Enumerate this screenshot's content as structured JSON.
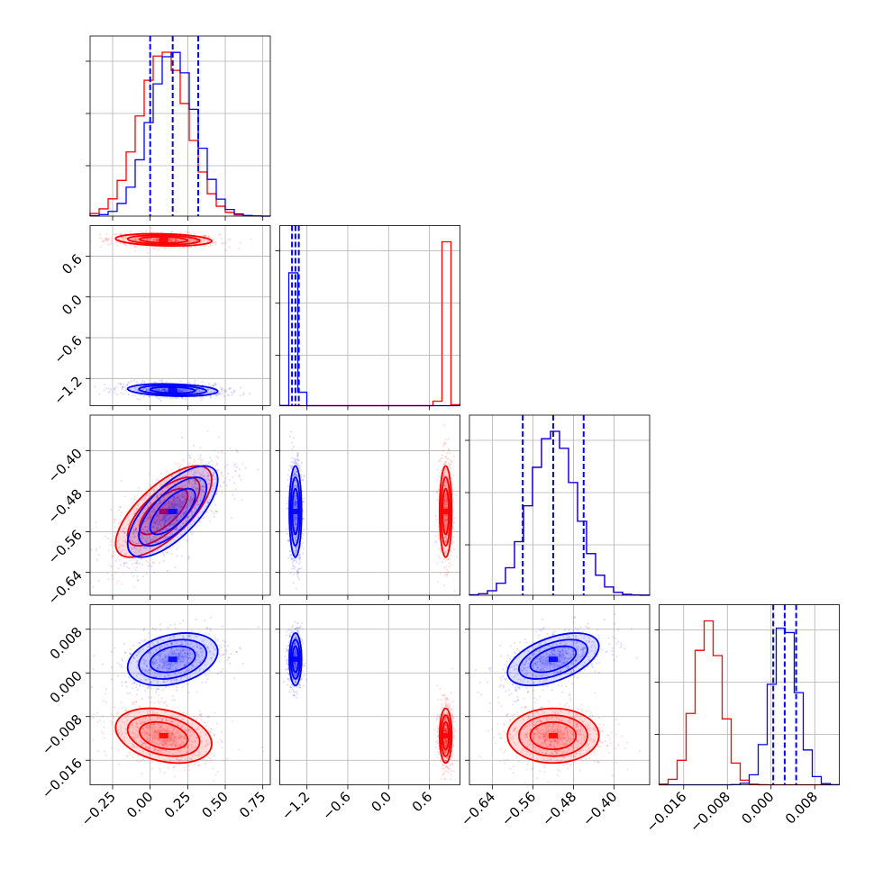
{
  "colors": {
    "series_a": "#ff0000",
    "series_b": "#0000ff",
    "grid": "#b0b0b0",
    "axis": "#000000"
  },
  "chart_data": {
    "type": "corner",
    "title": "",
    "grid": true,
    "parameters": [
      {
        "range": [
          -0.4,
          0.8
        ],
        "ticks": [
          -0.25,
          0.0,
          0.25,
          0.5,
          0.75
        ],
        "tick_labels": [
          "−0.25",
          "0.00",
          "0.25",
          "0.50",
          "0.75"
        ]
      },
      {
        "range": [
          -1.6,
          1.05
        ],
        "ticks": [
          -1.2,
          -0.6,
          0.0,
          0.6
        ],
        "tick_labels": [
          "−1.2",
          "−0.6",
          "0.0",
          "0.6"
        ]
      },
      {
        "range": [
          -0.685,
          -0.33
        ],
        "ticks": [
          -0.64,
          -0.56,
          -0.48,
          -0.4
        ],
        "tick_labels": [
          "−0.64",
          "−0.56",
          "−0.48",
          "−0.40"
        ]
      },
      {
        "range": [
          -0.0205,
          0.0125
        ],
        "ticks": [
          -0.016,
          -0.008,
          0.0,
          0.008
        ],
        "tick_labels": [
          "−0.016",
          "−0.008",
          "0.000",
          "0.008"
        ]
      }
    ],
    "series": [
      {
        "color": "#ff0000",
        "mean": [
          0.09,
          0.84,
          -0.52,
          -0.0115
        ],
        "sd": [
          0.16,
          0.045,
          0.045,
          0.0025
        ]
      },
      {
        "color": "#0000ff",
        "mean": [
          0.15,
          -1.37,
          -0.52,
          0.0025
        ],
        "sd": [
          0.15,
          0.045,
          0.045,
          0.0024
        ]
      }
    ],
    "quantiles": [
      {
        "param": 0,
        "values": [
          0.0,
          0.15,
          0.32
        ]
      },
      {
        "param": 1,
        "values": [
          -1.42,
          -1.37,
          -1.32
        ]
      },
      {
        "param": 2,
        "values": [
          -0.58,
          -0.52,
          -0.46
        ]
      },
      {
        "param": 3,
        "values": [
          0.0004,
          0.0025,
          0.0046
        ]
      }
    ]
  }
}
